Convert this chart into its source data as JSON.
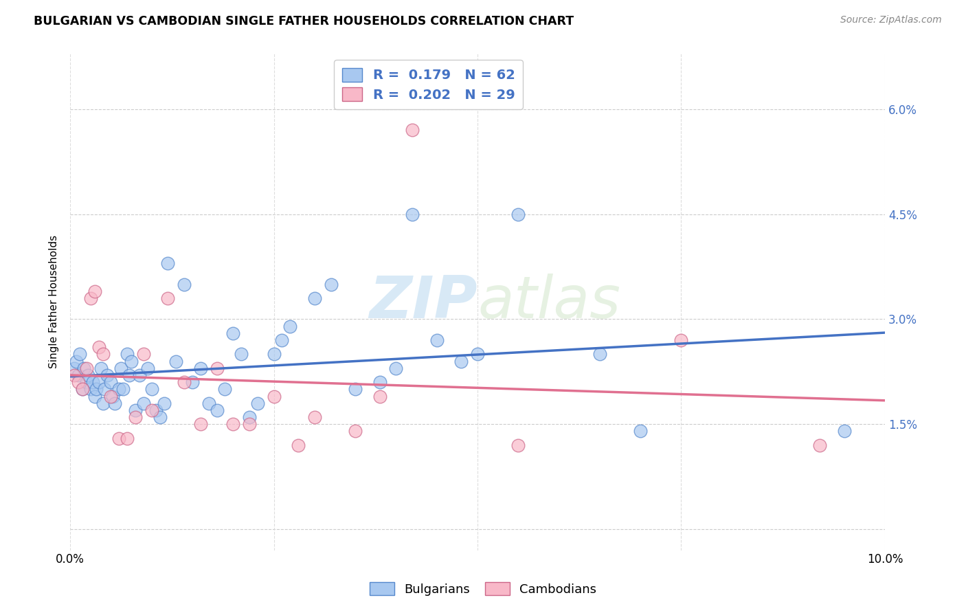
{
  "title": "BULGARIAN VS CAMBODIAN SINGLE FATHER HOUSEHOLDS CORRELATION CHART",
  "source": "Source: ZipAtlas.com",
  "ylabel": "Single Father Households",
  "watermark_zip": "ZIP",
  "watermark_atlas": "atlas",
  "xlim": [
    0.0,
    10.0
  ],
  "ylim_min": -0.3,
  "ylim_max": 6.8,
  "yticks": [
    0.0,
    1.5,
    3.0,
    4.5,
    6.0
  ],
  "ytick_labels": [
    "",
    "1.5%",
    "3.0%",
    "4.5%",
    "6.0%"
  ],
  "xticks": [
    0.0,
    2.5,
    5.0,
    7.5,
    10.0
  ],
  "xtick_labels": [
    "0.0%",
    "",
    "",
    "",
    "10.0%"
  ],
  "bulgarian_color": "#a8c8f0",
  "bulgarian_edge": "#5588cc",
  "cambodian_color": "#f8b8c8",
  "cambodian_edge": "#cc6688",
  "trendline_bulgarian_color": "#4472c4",
  "trendline_cambodian_color": "#e07090",
  "legend_R_bulgarian": "0.179",
  "legend_N_bulgarian": "62",
  "legend_R_cambodian": "0.202",
  "legend_N_cambodian": "29",
  "bulgarian_x": [
    0.05,
    0.07,
    0.1,
    0.12,
    0.15,
    0.17,
    0.2,
    0.22,
    0.25,
    0.28,
    0.3,
    0.32,
    0.35,
    0.38,
    0.4,
    0.42,
    0.45,
    0.5,
    0.52,
    0.55,
    0.6,
    0.62,
    0.65,
    0.7,
    0.72,
    0.75,
    0.8,
    0.85,
    0.9,
    0.95,
    1.0,
    1.05,
    1.1,
    1.15,
    1.2,
    1.3,
    1.4,
    1.5,
    1.6,
    1.7,
    1.8,
    1.9,
    2.0,
    2.1,
    2.2,
    2.3,
    2.5,
    2.6,
    2.7,
    3.0,
    3.2,
    3.5,
    3.8,
    4.0,
    4.2,
    4.5,
    4.8,
    5.0,
    5.5,
    6.5,
    7.0,
    9.5
  ],
  "bulgarian_y": [
    2.3,
    2.4,
    2.2,
    2.5,
    2.0,
    2.3,
    2.1,
    2.2,
    2.0,
    2.1,
    1.9,
    2.0,
    2.1,
    2.3,
    1.8,
    2.0,
    2.2,
    2.1,
    1.9,
    1.8,
    2.0,
    2.3,
    2.0,
    2.5,
    2.2,
    2.4,
    1.7,
    2.2,
    1.8,
    2.3,
    2.0,
    1.7,
    1.6,
    1.8,
    3.8,
    2.4,
    3.5,
    2.1,
    2.3,
    1.8,
    1.7,
    2.0,
    2.8,
    2.5,
    1.6,
    1.8,
    2.5,
    2.7,
    2.9,
    3.3,
    3.5,
    2.0,
    2.1,
    2.3,
    4.5,
    2.7,
    2.4,
    2.5,
    4.5,
    2.5,
    1.4,
    1.4
  ],
  "cambodian_x": [
    0.05,
    0.1,
    0.15,
    0.2,
    0.25,
    0.3,
    0.35,
    0.4,
    0.5,
    0.6,
    0.7,
    0.8,
    0.9,
    1.0,
    1.2,
    1.4,
    1.6,
    1.8,
    2.0,
    2.2,
    2.5,
    2.8,
    3.0,
    3.5,
    3.8,
    4.2,
    5.5,
    7.5,
    9.2
  ],
  "cambodian_y": [
    2.2,
    2.1,
    2.0,
    2.3,
    3.3,
    3.4,
    2.6,
    2.5,
    1.9,
    1.3,
    1.3,
    1.6,
    2.5,
    1.7,
    3.3,
    2.1,
    1.5,
    2.3,
    1.5,
    1.5,
    1.9,
    1.2,
    1.6,
    1.4,
    1.9,
    5.7,
    1.2,
    2.7,
    1.2
  ]
}
